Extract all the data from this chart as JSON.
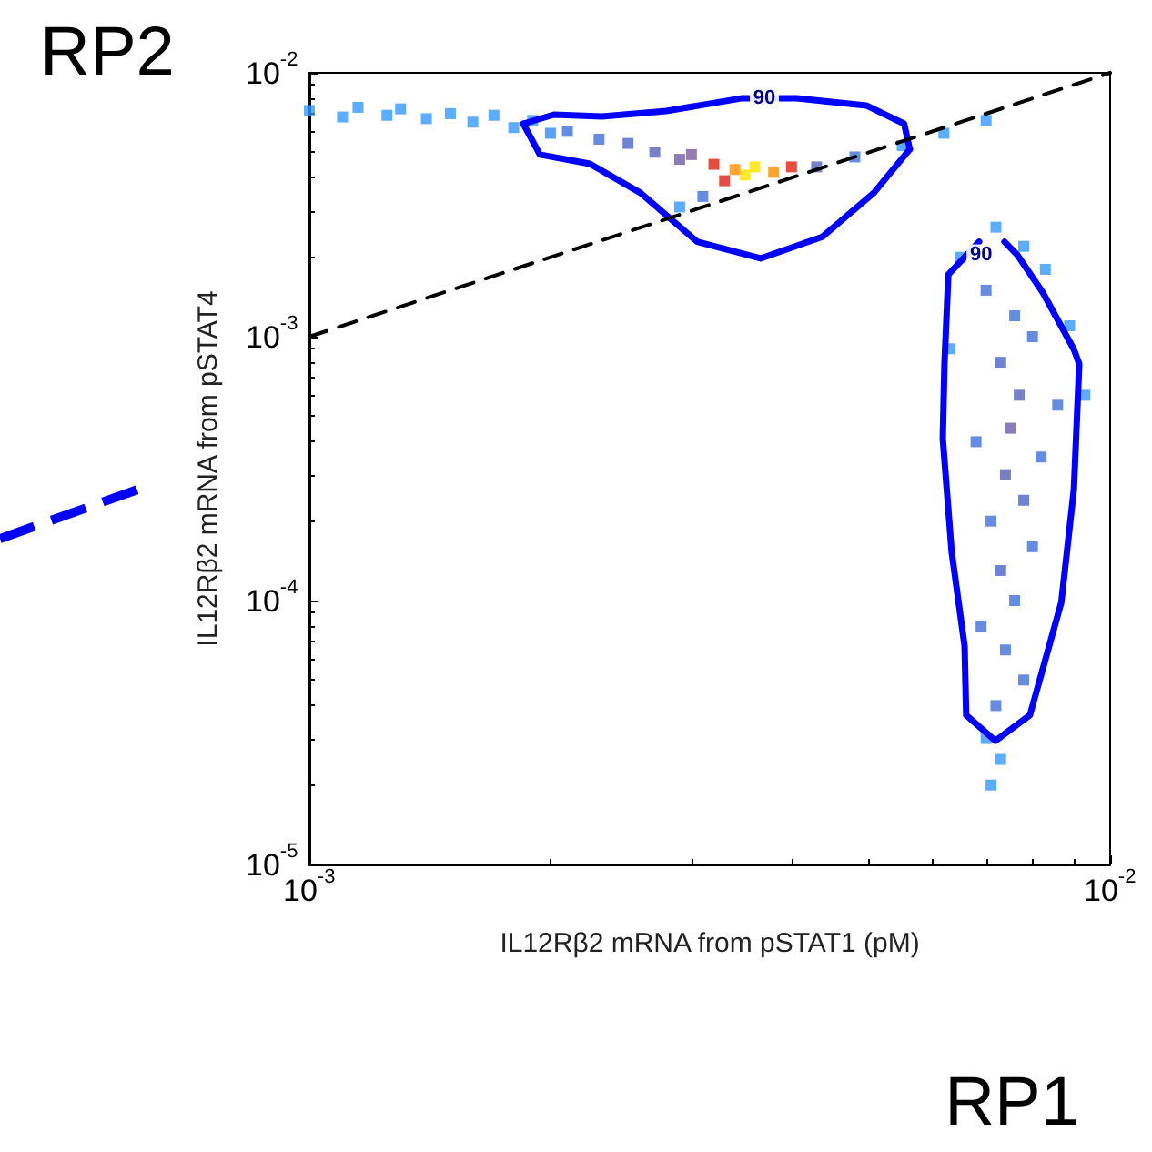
{
  "chart_data": {
    "type": "scatter",
    "xlabel": "IL12Rβ2 mRNA from pSTAT1 (pM)",
    "ylabel": "IL12Rβ2 mRNA from pSTAT4",
    "log": "xy",
    "xlim": [
      0.001,
      0.01
    ],
    "ylim": [
      1e-05,
      0.01
    ],
    "xticks": [
      {
        "value": 0.001,
        "label": "10$^{-3}$"
      },
      {
        "value": 0.01,
        "label": "10$^{-2}$"
      }
    ],
    "yticks": [
      {
        "value": 1e-05,
        "label": "10$^{-5}$"
      },
      {
        "value": 0.0001,
        "label": "10$^{-4}$"
      },
      {
        "value": 0.001,
        "label": "10$^{-3}$"
      },
      {
        "value": 0.01,
        "label": "10$^{-2}$"
      }
    ],
    "grid": false,
    "annotations": [
      "RP2",
      "RP1",
      {
        "text": "90",
        "x": 0.0037,
        "y": 0.008
      },
      {
        "text": "90",
        "x": 0.0069,
        "y": 0.00205
      }
    ],
    "series": [
      {
        "marker": "square",
        "x": [
          0.001,
          0.0011,
          0.00115,
          0.00125,
          0.0013,
          0.0014,
          0.0015,
          0.0016,
          0.0017,
          0.0018,
          0.0019,
          0.002,
          0.0021,
          0.0023,
          0.0025,
          0.0027,
          0.0029,
          0.003,
          0.0032,
          0.0034,
          0.0035,
          0.0036,
          0.0038,
          0.0033,
          0.004,
          0.0029,
          0.0031,
          0.0043,
          0.0048,
          0.0055,
          0.0062,
          0.007,
          0.0072,
          0.0078,
          0.0065,
          0.0083,
          0.007,
          0.0076,
          0.008,
          0.0073,
          0.0077,
          0.0086,
          0.0075,
          0.0068,
          0.0082,
          0.0074,
          0.0078,
          0.0071,
          0.008,
          0.0073,
          0.0076,
          0.0069,
          0.0074,
          0.0078,
          0.0072,
          0.007,
          0.0073,
          0.0071,
          0.0093,
          0.0063,
          0.0089
        ],
        "values": [
          0.0072,
          0.0068,
          0.0074,
          0.0069,
          0.0073,
          0.0067,
          0.007,
          0.0065,
          0.0069,
          0.0062,
          0.0066,
          0.0059,
          0.006,
          0.0056,
          0.0054,
          0.005,
          0.0047,
          0.0049,
          0.0045,
          0.0043,
          0.0041,
          0.0044,
          0.0042,
          0.0039,
          0.0044,
          0.0031,
          0.0034,
          0.0044,
          0.0048,
          0.0053,
          0.0059,
          0.0066,
          0.0026,
          0.0022,
          0.002,
          0.0018,
          0.0015,
          0.0012,
          0.001,
          0.0008,
          0.0006,
          0.00055,
          0.00045,
          0.0004,
          0.00035,
          0.0003,
          0.00024,
          0.0002,
          0.00016,
          0.00013,
          0.0001,
          8e-05,
          6.5e-05,
          5e-05,
          4e-05,
          3e-05,
          2.5e-05,
          2e-05,
          0.0006,
          0.0009,
          0.0011
        ],
        "colors": [
          "#3399ff",
          "#3399ff",
          "#3399ff",
          "#3399ff",
          "#3399ff",
          "#3399ff",
          "#3399ff",
          "#3399ff",
          "#3399ff",
          "#3399ff",
          "#3399ff",
          "#3388ee",
          "#3f6fd8",
          "#3f6fd8",
          "#4a64c8",
          "#5560b8",
          "#6a5aa8",
          "#7a5a9a",
          "#e02010",
          "#ff8c00",
          "#ffe000",
          "#ffe000",
          "#ff8c00",
          "#e02010",
          "#e02010",
          "#3399ff",
          "#3f6fd8",
          "#5560b8",
          "#3f6fd8",
          "#3399ff",
          "#3399ff",
          "#3399ff",
          "#3399ff",
          "#3399ff",
          "#3399ff",
          "#3399ff",
          "#3f6fd8",
          "#3f6fd8",
          "#3f6fd8",
          "#4a64c8",
          "#5560b8",
          "#3f6fd8",
          "#6a5aa8",
          "#3f6fd8",
          "#3f6fd8",
          "#5560b8",
          "#4a64c8",
          "#3f6fd8",
          "#3f6fd8",
          "#4a64c8",
          "#3f6fd8",
          "#3f6fd8",
          "#3f6fd8",
          "#3f6fd8",
          "#3f6fd8",
          "#3399ff",
          "#3399ff",
          "#3399ff",
          "#3399ff",
          "#3399ff",
          "#3399ff"
        ]
      },
      {
        "type": "line",
        "color": "#0000ff",
        "marker": "none",
        "x": [
          0.00185,
          0.00194,
          0.00224,
          0.00259,
          0.00305,
          0.00366,
          0.00437,
          0.00507,
          0.00562
        ],
        "values": [
          0.00641,
          0.0049,
          0.00452,
          0.00351,
          0.00229,
          0.00198,
          0.00239,
          0.00351,
          0.00513
        ]
      },
      {
        "type": "line",
        "color": "#0000ff",
        "marker": "none",
        "x": [
          0.00185,
          0.00202,
          0.00232,
          0.00279,
          0.00346,
          0.00406,
          0.00496,
          0.00553,
          0.00562
        ],
        "values": [
          0.00641,
          0.00694,
          0.00683,
          0.00716,
          0.008,
          0.008,
          0.00752,
          0.00641,
          0.00513
        ]
      },
      {
        "type": "line",
        "color": "#0000ff",
        "marker": "none",
        "x": [
          0.00686,
          0.00628,
          0.00621,
          0.00618,
          0.00634,
          0.00658,
          0.00661,
          0.00719,
          0.00794,
          0.00869,
          0.00901,
          0.00915,
          0.00901,
          0.00824,
          0.00766,
          0.00738
        ],
        "values": [
          0.00229,
          0.00172,
          0.000788,
          0.000411,
          0.000153,
          6.73e-05,
          3.68e-05,
          2.94e-05,
          3.68e-05,
          9.84e-05,
          0.000264,
          0.000788,
          0.000895,
          0.00147,
          0.00204,
          0.00229
        ]
      },
      {
        "type": "line",
        "color": "#000000",
        "marker": "none",
        "line_style": "dashed",
        "x": [
          0.001,
          0.01
        ],
        "values": [
          0.001,
          0.01
        ]
      }
    ]
  }
}
